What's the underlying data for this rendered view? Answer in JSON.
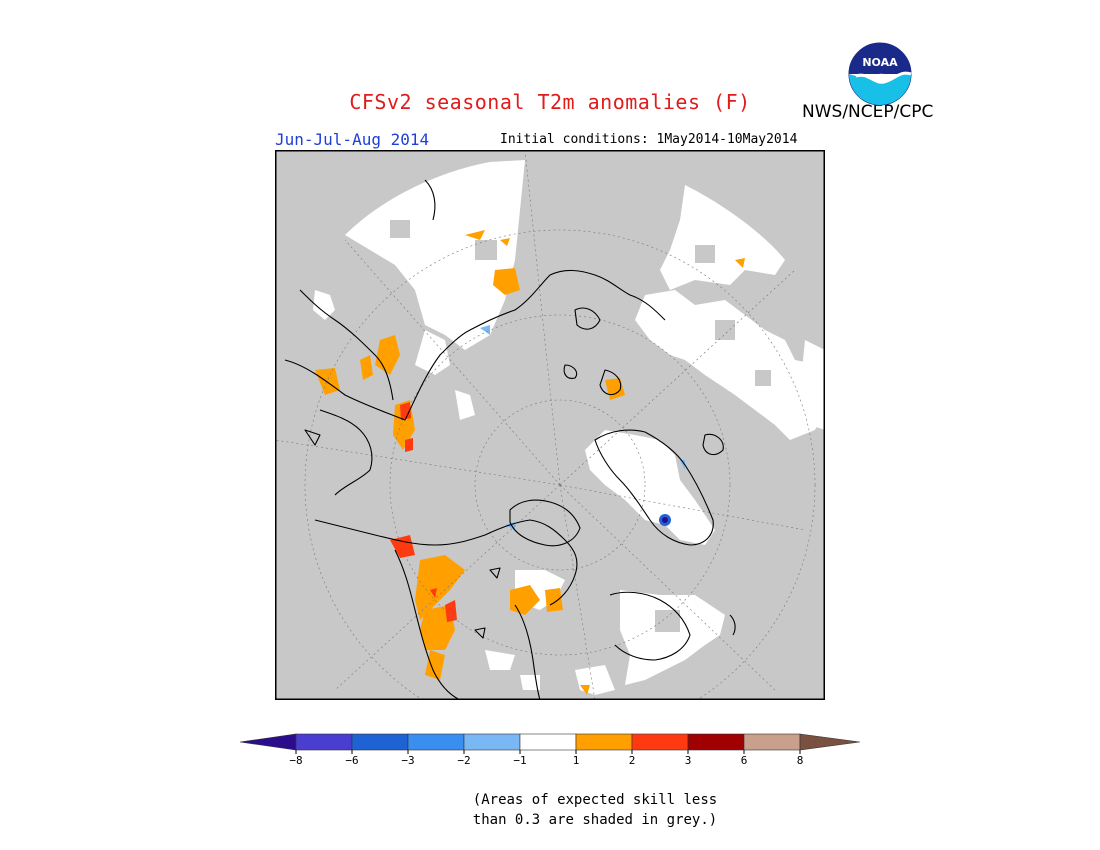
{
  "header": {
    "title": "CFSv2 seasonal T2m anomalies (F)",
    "agency": "NWS/NCEP/CPC",
    "season": "Jun-Jul-Aug 2014",
    "initial_conditions": "Initial conditions: 1May2014-10May2014",
    "logo_text": "NOAA"
  },
  "map": {
    "projection": "north polar stereographic",
    "background_color": "#c8c8c8",
    "no_skill_color": "#c8c8c8",
    "near_normal_color": "#ffffff"
  },
  "legend": {
    "bins": [
      {
        "color": "#2b0d8c"
      },
      {
        "color": "#4a3ed1"
      },
      {
        "color": "#1f62d4"
      },
      {
        "color": "#3a8ef0"
      },
      {
        "color": "#7ab8f5"
      },
      {
        "color": "#ffffff"
      },
      {
        "color": "#ffa000"
      },
      {
        "color": "#ff3a10"
      },
      {
        "color": "#a00000"
      },
      {
        "color": "#c8a08c"
      },
      {
        "color": "#7a5040"
      }
    ],
    "tick_labels": [
      "−8",
      "−6",
      "−3",
      "−2",
      "−1",
      "1",
      "2",
      "3",
      "6",
      "8"
    ]
  },
  "note": {
    "line1": "(Areas of expected skill less",
    "line2": "than 0.3 are shaded in grey.)"
  }
}
